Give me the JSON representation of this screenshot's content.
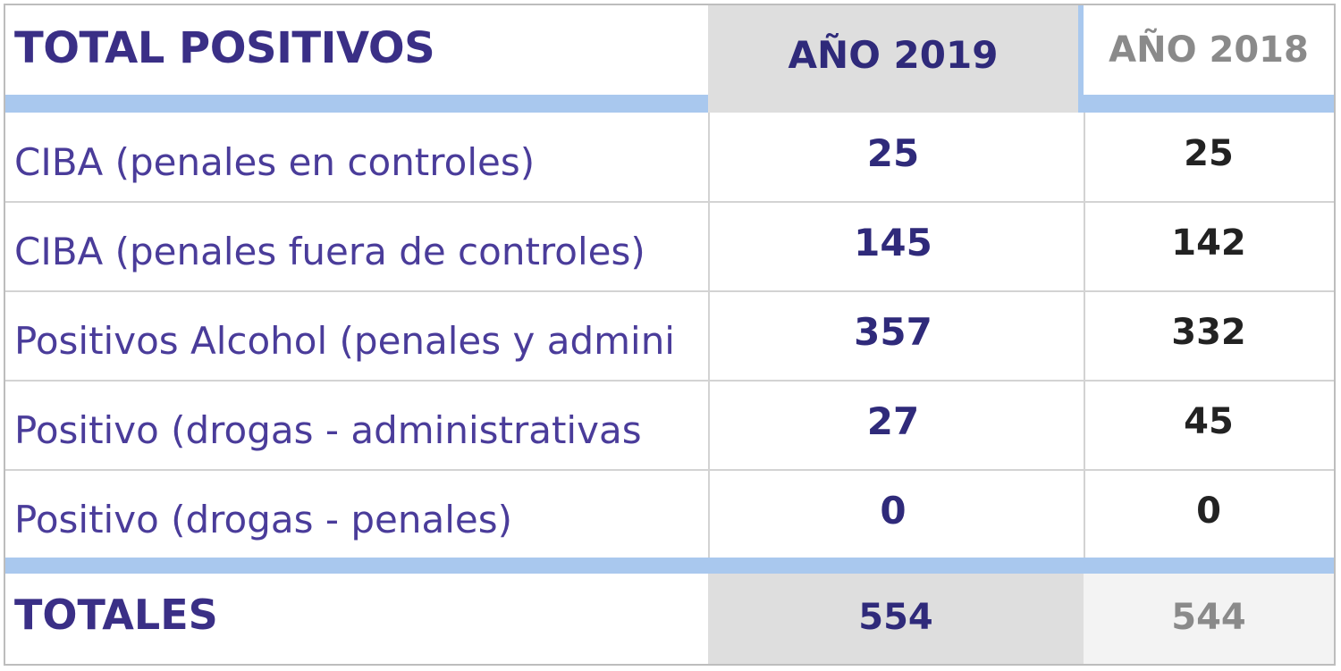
{
  "header": {
    "title": "TOTAL POSITIVOS",
    "col_2019": "AÑO 2019",
    "col_2018": "AÑO 2018"
  },
  "rows": [
    {
      "label": "CIBA (penales en controles)",
      "v2019": "25",
      "v2018": "25"
    },
    {
      "label": "CIBA (penales fuera de controles)",
      "v2019": "145",
      "v2018": "142"
    },
    {
      "label": "Positivos Alcohol (penales y admini",
      "v2019": "357",
      "v2018": "332"
    },
    {
      "label": "Positivo (drogas - administrativas",
      "v2019": "27",
      "v2018": "45"
    },
    {
      "label": "Positivo (drogas - penales)",
      "v2019": "0",
      "v2018": "0"
    }
  ],
  "totals": {
    "label": "TOTALES",
    "v2019": "554",
    "v2018": "544"
  },
  "colors": {
    "accent_bar": "#a9c8ee",
    "header_text": "#3a2f86",
    "shaded_cell": "#dedede"
  }
}
